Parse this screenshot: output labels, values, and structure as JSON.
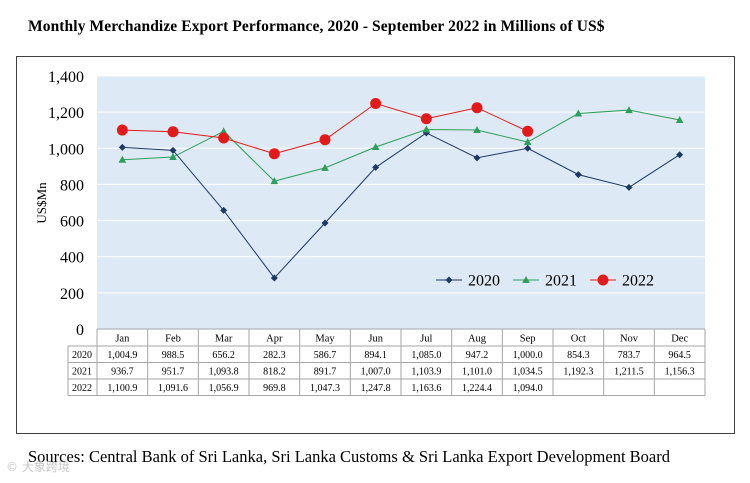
{
  "chart_data": {
    "type": "line",
    "title": "Monthly Merchandize Export Performance,  2020 - September 2022 in Millions  of US$",
    "xlabel": "",
    "ylabel": "US$Mn",
    "ylim": [
      0,
      1400
    ],
    "yticks": [
      0,
      200,
      400,
      600,
      800,
      1000,
      1200,
      1400
    ],
    "ytick_labels": [
      "0",
      "200",
      "400",
      "600",
      "800",
      "1,000",
      "1,200",
      "1,400"
    ],
    "grid": true,
    "legend_position": "bottom-right",
    "categories": [
      "Jan",
      "Feb",
      "Mar",
      "Apr",
      "May",
      "Jun",
      "Jul",
      "Aug",
      "Sep",
      "Oct",
      "Nov",
      "Dec"
    ],
    "series": [
      {
        "name": "2020",
        "color": "#1f3864",
        "marker": "diamond",
        "values": [
          1004.9,
          988.5,
          656.2,
          282.3,
          586.7,
          894.1,
          1085.0,
          947.2,
          1000.0,
          854.3,
          783.7,
          964.5
        ],
        "labels": [
          "1,004.9",
          "988.5",
          "656.2",
          "282.3",
          "586.7",
          "894.1",
          "1,085.0",
          "947.2",
          "1,000.0",
          "854.3",
          "783.7",
          "964.5"
        ]
      },
      {
        "name": "2021",
        "color": "#2e9e5a",
        "marker": "triangle",
        "values": [
          936.7,
          951.7,
          1093.8,
          818.2,
          891.7,
          1007.0,
          1103.9,
          1101.0,
          1034.5,
          1192.3,
          1211.5,
          1156.3
        ],
        "labels": [
          "936.7",
          "951.7",
          "1,093.8",
          "818.2",
          "891.7",
          "1,007.0",
          "1,103.9",
          "1,101.0",
          "1,034.5",
          "1,192.3",
          "1,211.5",
          "1,156.3"
        ]
      },
      {
        "name": "2022",
        "color": "#e21a1a",
        "marker": "circle",
        "values": [
          1100.9,
          1091.6,
          1056.9,
          969.8,
          1047.3,
          1247.8,
          1163.6,
          1224.4,
          1094.0,
          null,
          null,
          null
        ],
        "labels": [
          "1,100.9",
          "1,091.6",
          "1,056.9",
          "969.8",
          "1,047.3",
          "1,247.8",
          "1,163.6",
          "1,224.4",
          "1,094.0",
          "",
          "",
          ""
        ]
      }
    ]
  },
  "source_text": "Sources: Central Bank of Sri Lanka, Sri Lanka Customs & Sri Lanka Export Development Board",
  "watermark": "© 大象跨境"
}
